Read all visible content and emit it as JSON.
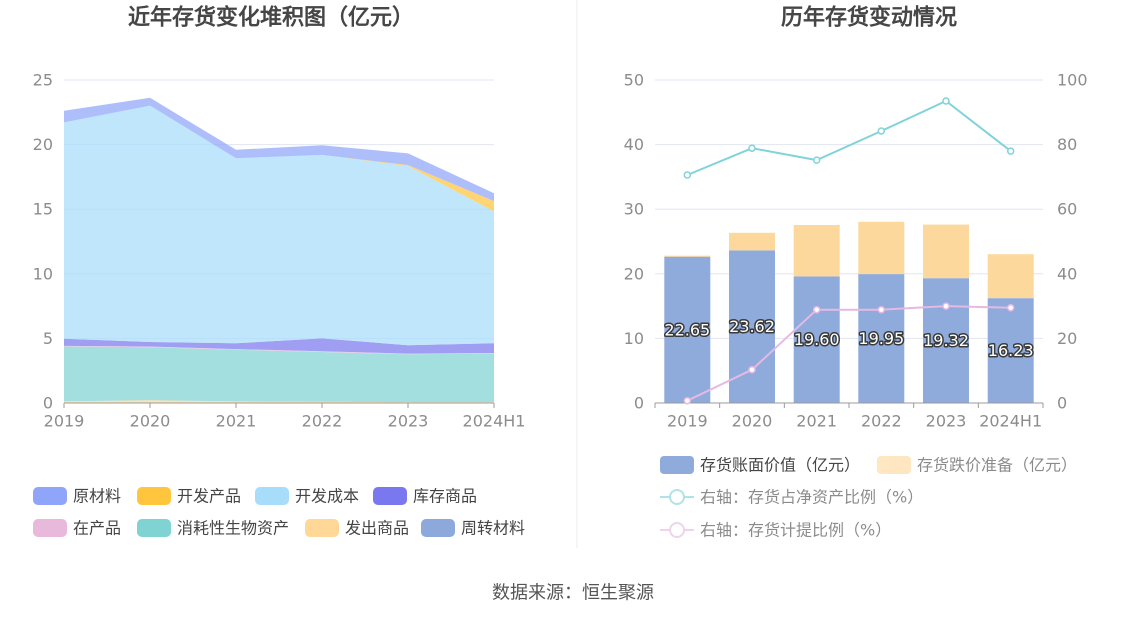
{
  "source": "数据来源：恒生聚源",
  "chart_data": [
    {
      "type": "area",
      "stacked": true,
      "title": "近年存货变化堆积图（亿元）",
      "categories": [
        "2019",
        "2020",
        "2021",
        "2022",
        "2023",
        "2024H1"
      ],
      "ylim": [
        0,
        25
      ],
      "yticks": [
        0,
        5,
        10,
        15,
        20,
        25
      ],
      "grid": true,
      "legend_position": "bottom",
      "series": [
        {
          "name": "原材料",
          "color": "#8ea5fa",
          "values": [
            0.9,
            0.6,
            0.65,
            0.75,
            0.9,
            0.6
          ]
        },
        {
          "name": "开发产品",
          "color": "#ffc53d",
          "values": [
            0,
            0,
            0,
            0,
            0.08,
            0.8
          ]
        },
        {
          "name": "开发成本",
          "color": "#a8dcfb",
          "values": [
            16.75,
            18.3,
            14.33,
            14.2,
            13.87,
            10.21
          ]
        },
        {
          "name": "库存商品",
          "color": "#7a78ef",
          "values": [
            0.55,
            0.35,
            0.45,
            1.0,
            0.65,
            0.75
          ]
        },
        {
          "name": "在产品",
          "color": "#e8b9db",
          "values": [
            0.05,
            0.05,
            0.05,
            0.05,
            0.05,
            0.05
          ]
        },
        {
          "name": "消耗性生物资产",
          "color": "#7fd3d3",
          "values": [
            4.25,
            4.1,
            4.0,
            3.85,
            3.7,
            3.75
          ]
        },
        {
          "name": "发出商品",
          "color": "#ffd796",
          "values": [
            0.1,
            0.2,
            0.1,
            0.08,
            0.05,
            0.05
          ]
        },
        {
          "name": "周转材料",
          "color": "#8da8da",
          "values": [
            0.02,
            0.02,
            0.02,
            0.02,
            0.02,
            0.02
          ]
        }
      ]
    },
    {
      "type": "bar",
      "stacked": true,
      "title": "历年存货变动情况",
      "categories": [
        "2019",
        "2020",
        "2021",
        "2022",
        "2023",
        "2024H1"
      ],
      "ylim": [
        0,
        50
      ],
      "yticks": [
        0,
        10,
        20,
        30,
        40,
        50
      ],
      "y2lim": [
        0,
        100
      ],
      "y2ticks": [
        0,
        20,
        40,
        60,
        80,
        100
      ],
      "grid": true,
      "legend_position": "bottom",
      "series": [
        {
          "name": "存货账面价值（亿元）",
          "type": "bar",
          "axis": "left",
          "color": "#8eabdb",
          "data_labels": true,
          "values": [
            22.65,
            23.62,
            19.6,
            19.95,
            19.32,
            16.23
          ]
        },
        {
          "name": "存货跌价准备（亿元）",
          "type": "bar",
          "axis": "left",
          "color": "#fdd89c",
          "values": [
            0.15,
            2.72,
            7.95,
            8.1,
            8.3,
            6.8
          ]
        },
        {
          "name": "右轴：存货占净资产比例（%）",
          "type": "line",
          "axis": "right",
          "color": "#80d3d9",
          "values": [
            70.6,
            78.9,
            75.2,
            84.2,
            93.5,
            78.0
          ]
        },
        {
          "name": "右轴：存货计提比例（%）",
          "type": "line",
          "axis": "right",
          "color": "#e6b9e2",
          "values": [
            0.7,
            10.3,
            28.9,
            28.9,
            30.0,
            29.5
          ]
        }
      ]
    }
  ]
}
